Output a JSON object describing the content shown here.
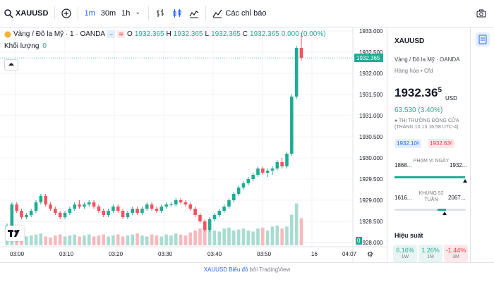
{
  "toolbar": {
    "symbol": "XAUUSD",
    "timeframes": [
      "1m",
      "30m",
      "1h"
    ],
    "active_timeframe": "1m",
    "alert_label": "Các chỉ báo"
  },
  "legend": {
    "title": "Vàng / Đô la Mỹ · 1 · OANDA",
    "open_key": "O",
    "open": "1932.365",
    "high_key": "H",
    "high": "1932.365",
    "low_key": "L",
    "low": "1932.365",
    "close_key": "C",
    "close": "1932.365",
    "change": "0.000 (0.00%)",
    "volume_label": "Khối lượng",
    "volume_value": "0"
  },
  "chart_data": {
    "type": "candlestick",
    "price_axis_ticks": [
      "1933.000",
      "1932.500",
      "1932.000",
      "1931.500",
      "1931.000",
      "1930.500",
      "1930.000",
      "1929.500",
      "1929.000",
      "1928.500",
      "1928.000"
    ],
    "current_price_label": "1932.365",
    "time_ticks": [
      "03:00",
      "03:10",
      "03:20",
      "03:30",
      "03:40",
      "03:50",
      "16",
      "04:07"
    ],
    "colors": {
      "up": "#22ab94",
      "down": "#f7525f",
      "vol_up": "#a8dcd1",
      "vol_down": "#f8b9bd"
    },
    "candles": [
      [
        1928.3,
        1928.45,
        1928.1,
        1928.4
      ],
      [
        1928.4,
        1928.95,
        1928.35,
        1928.9
      ],
      [
        1928.9,
        1928.95,
        1928.7,
        1928.75
      ],
      [
        1928.75,
        1928.8,
        1928.55,
        1928.6
      ],
      [
        1928.6,
        1928.7,
        1928.55,
        1928.65
      ],
      [
        1928.65,
        1928.8,
        1928.6,
        1928.75
      ],
      [
        1928.75,
        1929.0,
        1928.7,
        1928.95
      ],
      [
        1928.95,
        1929.15,
        1928.9,
        1929.1
      ],
      [
        1929.1,
        1929.15,
        1928.85,
        1928.9
      ],
      [
        1928.9,
        1928.95,
        1928.75,
        1928.8
      ],
      [
        1928.8,
        1928.85,
        1928.65,
        1928.7
      ],
      [
        1928.7,
        1928.75,
        1928.55,
        1928.6
      ],
      [
        1928.6,
        1928.75,
        1928.55,
        1928.7
      ],
      [
        1928.7,
        1928.85,
        1928.65,
        1928.8
      ],
      [
        1928.8,
        1928.95,
        1928.75,
        1928.9
      ],
      [
        1928.9,
        1929.0,
        1928.8,
        1928.85
      ],
      [
        1928.85,
        1928.95,
        1928.8,
        1928.9
      ],
      [
        1928.9,
        1929.0,
        1928.85,
        1928.95
      ],
      [
        1928.95,
        1929.0,
        1928.8,
        1928.85
      ],
      [
        1928.85,
        1928.9,
        1928.7,
        1928.75
      ],
      [
        1928.75,
        1928.8,
        1928.6,
        1928.65
      ],
      [
        1928.65,
        1928.8,
        1928.6,
        1928.75
      ],
      [
        1928.75,
        1928.9,
        1928.7,
        1928.85
      ],
      [
        1928.85,
        1928.9,
        1928.7,
        1928.75
      ],
      [
        1928.75,
        1928.8,
        1928.55,
        1928.6
      ],
      [
        1928.6,
        1928.75,
        1928.55,
        1928.7
      ],
      [
        1928.7,
        1928.85,
        1928.65,
        1928.8
      ],
      [
        1928.8,
        1928.85,
        1928.65,
        1928.7
      ],
      [
        1928.7,
        1928.85,
        1928.65,
        1928.8
      ],
      [
        1928.8,
        1928.95,
        1928.75,
        1928.9
      ],
      [
        1928.9,
        1928.95,
        1928.75,
        1928.8
      ],
      [
        1928.8,
        1928.85,
        1928.7,
        1928.75
      ],
      [
        1928.75,
        1928.9,
        1928.7,
        1928.85
      ],
      [
        1928.85,
        1928.95,
        1928.8,
        1928.9
      ],
      [
        1928.9,
        1928.95,
        1928.85,
        1928.9
      ],
      [
        1928.9,
        1929.05,
        1928.85,
        1929.0
      ],
      [
        1929.0,
        1929.05,
        1928.9,
        1928.95
      ],
      [
        1928.95,
        1929.0,
        1928.85,
        1928.9
      ],
      [
        1928.9,
        1928.95,
        1928.75,
        1928.8
      ],
      [
        1928.8,
        1928.85,
        1928.6,
        1928.65
      ],
      [
        1928.65,
        1928.7,
        1928.45,
        1928.5
      ],
      [
        1928.5,
        1928.55,
        1928.25,
        1928.3
      ],
      [
        1928.3,
        1928.6,
        1928.25,
        1928.55
      ],
      [
        1928.55,
        1928.7,
        1928.5,
        1928.65
      ],
      [
        1928.65,
        1928.8,
        1928.6,
        1928.75
      ],
      [
        1928.75,
        1928.9,
        1928.7,
        1928.85
      ],
      [
        1928.85,
        1929.05,
        1928.8,
        1929.0
      ],
      [
        1929.0,
        1929.2,
        1928.95,
        1929.15
      ],
      [
        1929.15,
        1929.35,
        1929.1,
        1929.3
      ],
      [
        1929.3,
        1929.45,
        1929.25,
        1929.4
      ],
      [
        1929.4,
        1929.55,
        1929.35,
        1929.5
      ],
      [
        1929.5,
        1929.65,
        1929.45,
        1929.6
      ],
      [
        1929.6,
        1929.8,
        1929.55,
        1929.75
      ],
      [
        1929.75,
        1929.8,
        1929.6,
        1929.65
      ],
      [
        1929.65,
        1929.75,
        1929.55,
        1929.7
      ],
      [
        1929.7,
        1929.8,
        1929.6,
        1929.75
      ],
      [
        1929.75,
        1929.95,
        1929.7,
        1929.9
      ],
      [
        1929.9,
        1930.0,
        1929.75,
        1929.8
      ],
      [
        1929.8,
        1930.15,
        1929.75,
        1930.1
      ],
      [
        1930.1,
        1931.5,
        1930.05,
        1931.45
      ],
      [
        1931.45,
        1932.65,
        1931.4,
        1932.6
      ],
      [
        1932.6,
        1932.95,
        1932.3,
        1932.365
      ]
    ],
    "volume_ratio": [
      0.3,
      0.28,
      0.22,
      0.25,
      0.18,
      0.2,
      0.22,
      0.24,
      0.18,
      0.16,
      0.2,
      0.22,
      0.18,
      0.2,
      0.22,
      0.18,
      0.2,
      0.22,
      0.18,
      0.2,
      0.22,
      0.18,
      0.2,
      0.22,
      0.18,
      0.2,
      0.22,
      0.24,
      0.2,
      0.18,
      0.22,
      0.2,
      0.18,
      0.22,
      0.2,
      0.24,
      0.22,
      0.2,
      0.26,
      0.3,
      0.34,
      0.38,
      0.32,
      0.3,
      0.28,
      0.34,
      0.36,
      0.3,
      0.32,
      0.34,
      0.3,
      0.28,
      0.34,
      0.36,
      0.3,
      0.38,
      0.4,
      0.34,
      0.38,
      0.62,
      0.85,
      0.55
    ]
  },
  "panel": {
    "symbol": "XAUUSD",
    "subtitle": "Vàng / Đô la Mỹ · OANDA",
    "category": "Hàng hóa • Cfd",
    "price_main": "1932.36",
    "price_sup": "5",
    "currency": "USD",
    "change": "63.530 (3.40%)",
    "status_line1": "● THỊ TRƯỜNG ĐÓNG CỬA",
    "status_line2": "(THÁNG 10 13 16:58 UTC-4)",
    "bid_main": "1932.10",
    "bid_sup": "0",
    "ask_main": "1932.63",
    "ask_sup": "0",
    "day_low": "1868...",
    "day_label": "PHẠM VI NGÀY",
    "day_high": "1932...",
    "day_fill": 0.99,
    "w52_low": "1616...",
    "w52_label": "KHUNG 52 TUẦN",
    "w52_high": "2067...",
    "w52_fill": 0.7,
    "perf_title": "Hiệu suất",
    "perf": [
      {
        "value": "6.16%",
        "label": "1W",
        "dir": "up"
      },
      {
        "value": "1.26%",
        "label": "1M",
        "dir": "up"
      },
      {
        "value": "-1.44%",
        "label": "3M",
        "dir": "down"
      }
    ]
  },
  "footer": {
    "link": "XAUUSD Biểu đồ",
    "by": "bởi TradingView"
  }
}
